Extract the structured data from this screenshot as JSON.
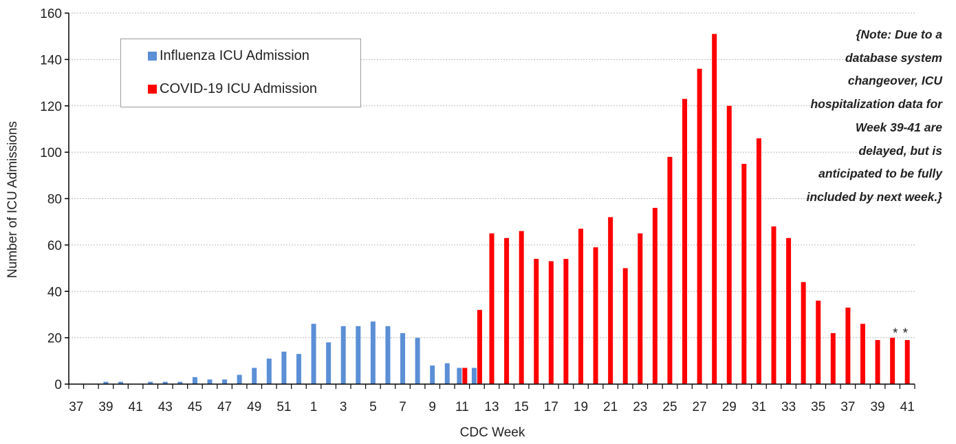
{
  "chart_data": {
    "type": "bar",
    "xlabel": "CDC Week",
    "ylabel": "Number of ICU Admissions",
    "ylim": [
      0,
      160
    ],
    "yticks": [
      0,
      20,
      40,
      60,
      80,
      100,
      120,
      140,
      160
    ],
    "grid": true,
    "legend_position": "top-left",
    "categories": [
      "37",
      "38",
      "39",
      "40",
      "41",
      "42",
      "43",
      "44",
      "45",
      "46",
      "47",
      "48",
      "49",
      "50",
      "51",
      "52",
      "1",
      "2",
      "3",
      "4",
      "5",
      "6",
      "7",
      "8",
      "9",
      "10",
      "11",
      "12",
      "13",
      "14",
      "15",
      "16",
      "17",
      "18",
      "19",
      "20",
      "21",
      "22",
      "23",
      "24",
      "25",
      "26",
      "27",
      "28",
      "29",
      "30",
      "31",
      "32",
      "33",
      "34",
      "35",
      "36",
      "37",
      "38",
      "39",
      "40",
      "41"
    ],
    "tick_labels": [
      "37",
      "",
      "39",
      "",
      "41",
      "",
      "43",
      "",
      "45",
      "",
      "47",
      "",
      "49",
      "",
      "51",
      "",
      "1",
      "",
      "3",
      "",
      "5",
      "",
      "7",
      "",
      "9",
      "",
      "11",
      "",
      "13",
      "",
      "15",
      "",
      "17",
      "",
      "19",
      "",
      "21",
      "",
      "23",
      "",
      "25",
      "",
      "27",
      "",
      "29",
      "",
      "31",
      "",
      "33",
      "",
      "35",
      "",
      "37",
      "",
      "39",
      "",
      "41"
    ],
    "series": [
      {
        "name": "Influenza ICU Admission",
        "color": "#5b8fd6",
        "values": [
          0,
          0,
          1,
          1,
          0,
          1,
          1,
          1,
          3,
          2,
          2,
          4,
          7,
          11,
          14,
          13,
          26,
          18,
          25,
          25,
          27,
          25,
          22,
          20,
          8,
          9,
          7,
          7,
          null,
          null,
          null,
          null,
          null,
          null,
          null,
          null,
          null,
          null,
          null,
          null,
          null,
          null,
          null,
          null,
          null,
          null,
          null,
          null,
          null,
          null,
          null,
          null,
          null,
          null,
          null,
          null,
          null
        ]
      },
      {
        "name": "COVID-19 ICU Admission",
        "color": "#ff0000",
        "values": [
          null,
          null,
          null,
          null,
          null,
          null,
          null,
          null,
          null,
          null,
          null,
          null,
          null,
          null,
          null,
          null,
          null,
          null,
          null,
          null,
          null,
          null,
          null,
          null,
          null,
          null,
          7,
          32,
          65,
          63,
          66,
          54,
          53,
          54,
          67,
          59,
          72,
          50,
          65,
          76,
          98,
          123,
          136,
          151,
          120,
          95,
          106,
          68,
          63,
          44,
          36,
          22,
          33,
          26,
          19,
          20,
          19
        ]
      }
    ],
    "annotations": {
      "note": "{Note: Due to a database system changeover, ICU hospitalization data for Week 39-41 are delayed, but is anticipated to be fully included by next week.}",
      "asterisks": "* *"
    }
  }
}
